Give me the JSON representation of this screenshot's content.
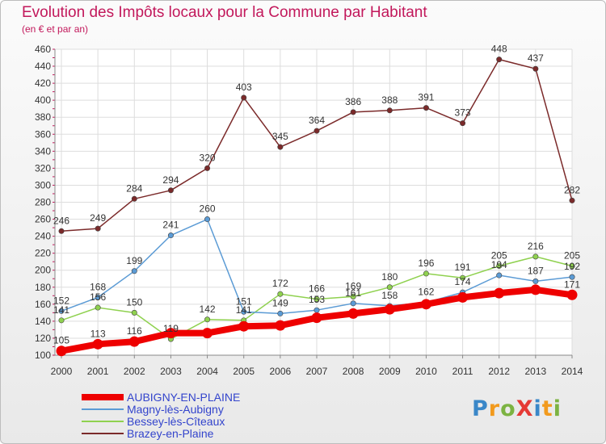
{
  "header": {
    "title": "Evolution des Impôts locaux pour la Commune par Habitant",
    "subtitle": "(en € et par an)"
  },
  "logo": {
    "text": "ProXiti",
    "colors": [
      "#3a87c8",
      "#f29a1d",
      "#7cb342",
      "#e53935",
      "#3a87c8",
      "#f29a1d",
      "#7cb342"
    ]
  },
  "chart_data": {
    "type": "line",
    "title": "Evolution des Impôts locaux pour la Commune par Habitant",
    "subtitle": "(en € et par an)",
    "x": [
      "2000",
      "2001",
      "2002",
      "2003",
      "2004",
      "2005",
      "2006",
      "2007",
      "2008",
      "2009",
      "2010",
      "2011",
      "2012",
      "2013",
      "2014"
    ],
    "ylim": [
      100,
      460
    ],
    "yticks": [
      100,
      120,
      140,
      160,
      180,
      200,
      220,
      240,
      260,
      280,
      300,
      320,
      340,
      360,
      380,
      400,
      420,
      440,
      460
    ],
    "grid": true,
    "legend_position": "bottom-left",
    "series": [
      {
        "name": "AUBIGNY-EN-PLAINE",
        "color": "#ee0000",
        "width": 8,
        "values": [
          105,
          113,
          116,
          126,
          126,
          134,
          135,
          144,
          149,
          154,
          160,
          168,
          173,
          177,
          171
        ],
        "labels": [
          105,
          113,
          116,
          null,
          null,
          null,
          null,
          null,
          null,
          null,
          null,
          null,
          null,
          null,
          171
        ]
      },
      {
        "name": "Magny-lès-Aubigny",
        "color": "#5b9bd5",
        "width": 1.5,
        "values": [
          152,
          168,
          199,
          241,
          260,
          151,
          149,
          153,
          161,
          158,
          162,
          174,
          194,
          187,
          192
        ],
        "labels": [
          152,
          168,
          199,
          241,
          260,
          151,
          149,
          153,
          161,
          158,
          162,
          174,
          194,
          187,
          192
        ]
      },
      {
        "name": "Bessey-lès-Cîteaux",
        "color": "#8fd14f",
        "width": 1.5,
        "values": [
          141,
          156,
          150,
          119,
          142,
          141,
          172,
          166,
          169,
          180,
          196,
          191,
          205,
          216,
          205
        ],
        "labels": [
          141,
          156,
          150,
          119,
          142,
          141,
          172,
          166,
          169,
          180,
          196,
          191,
          205,
          216,
          205
        ]
      },
      {
        "name": "Brazey-en-Plaine",
        "color": "#7b2a2a",
        "width": 1.5,
        "values": [
          246,
          249,
          284,
          294,
          320,
          403,
          345,
          364,
          386,
          388,
          391,
          373,
          448,
          437,
          282
        ],
        "labels": [
          246,
          249,
          284,
          294,
          320,
          403,
          345,
          364,
          386,
          388,
          391,
          373,
          448,
          437,
          282
        ]
      }
    ]
  }
}
